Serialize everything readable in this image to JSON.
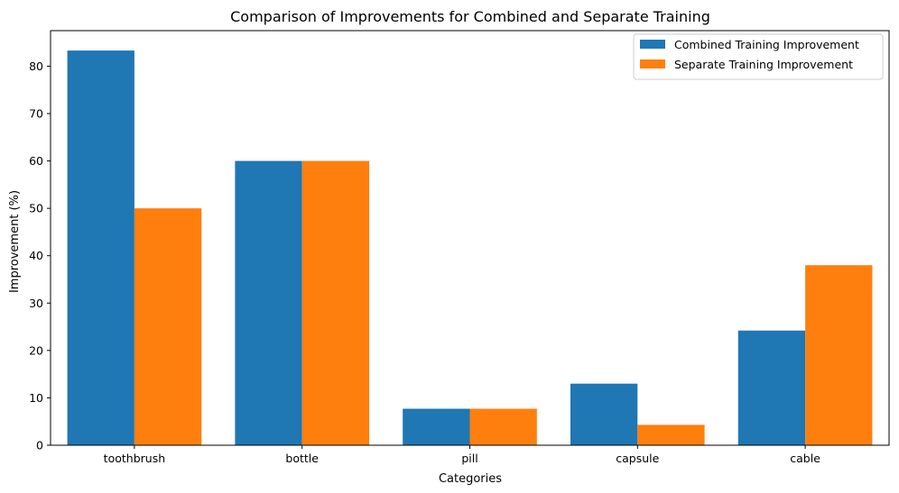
{
  "chart_data": {
    "type": "bar",
    "title": "Comparison of Improvements for Combined and Separate Training",
    "xlabel": "Categories",
    "ylabel": "Improvement (%)",
    "categories": [
      "toothbrush",
      "bottle",
      "pill",
      "capsule",
      "cable"
    ],
    "series": [
      {
        "name": "Combined Training Improvement",
        "color": "#1f77b4",
        "values": [
          83.3,
          60.0,
          7.7,
          13.0,
          24.2
        ]
      },
      {
        "name": "Separate Training Improvement",
        "color": "#ff7f0e",
        "values": [
          50.0,
          60.0,
          7.7,
          4.3,
          38.0
        ]
      }
    ],
    "ylim": [
      0,
      87.5
    ],
    "yticks": [
      0,
      10,
      20,
      30,
      40,
      50,
      60,
      70,
      80
    ],
    "grid": false,
    "legend_position": "top-right"
  }
}
